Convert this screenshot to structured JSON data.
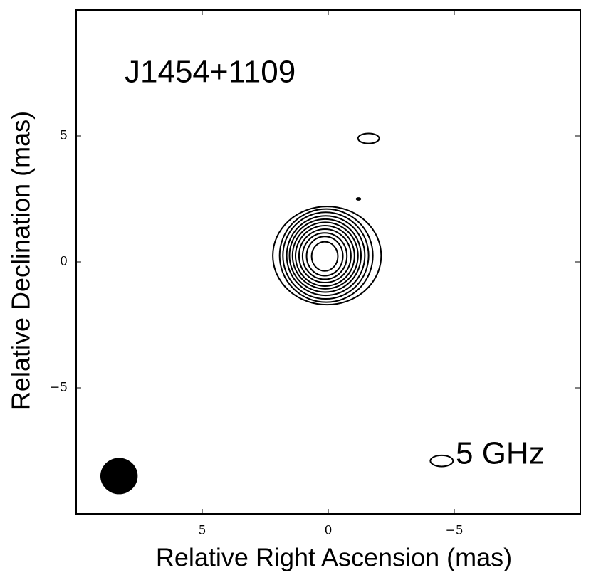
{
  "chart_data": {
    "type": "contour",
    "title": "J1454+1109",
    "annotation": "5 GHz",
    "xlabel": "Relative Right Ascension (mas)",
    "ylabel": "Relative Declination (mas)",
    "xlim": [
      10,
      -10
    ],
    "ylim": [
      -10,
      10
    ],
    "xticks": [
      5,
      0,
      {
        "value": -5,
        "label": "−5"
      }
    ],
    "yticks": [
      {
        "value": -5,
        "label": "−5"
      },
      0,
      5
    ],
    "color": "#000000",
    "contours": [
      {
        "x": 0.05,
        "y": 0.25,
        "rx": 2.15,
        "ry": 1.95
      },
      {
        "x": 0.08,
        "y": 0.25,
        "rx": 1.85,
        "ry": 1.85
      },
      {
        "x": 0.1,
        "y": 0.25,
        "rx": 1.7,
        "ry": 1.72
      },
      {
        "x": 0.1,
        "y": 0.25,
        "rx": 1.55,
        "ry": 1.58
      },
      {
        "x": 0.12,
        "y": 0.25,
        "rx": 1.42,
        "ry": 1.45
      },
      {
        "x": 0.12,
        "y": 0.25,
        "rx": 1.3,
        "ry": 1.32
      },
      {
        "x": 0.13,
        "y": 0.24,
        "rx": 1.17,
        "ry": 1.2
      },
      {
        "x": 0.13,
        "y": 0.24,
        "rx": 1.03,
        "ry": 1.06
      },
      {
        "x": 0.14,
        "y": 0.23,
        "rx": 0.88,
        "ry": 0.92
      },
      {
        "x": 0.14,
        "y": 0.23,
        "rx": 0.72,
        "ry": 0.78
      },
      {
        "x": 0.14,
        "y": 0.22,
        "rx": 0.52,
        "ry": 0.58
      },
      {
        "x": -1.6,
        "y": 4.9,
        "rx": 0.42,
        "ry": 0.2
      },
      {
        "x": -1.2,
        "y": 2.5,
        "rx": 0.08,
        "ry": 0.04
      },
      {
        "x": -4.5,
        "y": -7.9,
        "rx": 0.45,
        "ry": 0.22
      }
    ],
    "beam": {
      "x": 8.3,
      "y": -8.5,
      "rx": 0.74,
      "ry": 0.72
    }
  }
}
